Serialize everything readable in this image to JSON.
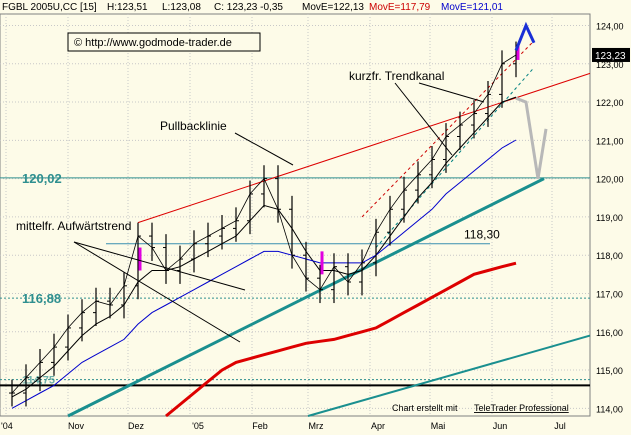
{
  "chart_data": {
    "type": "line",
    "header": {
      "symbol": "FGBL 2005U,CC [15]",
      "high": "H:123,51",
      "low": "L:123,08",
      "close": "C: 123,23 -0,35",
      "ma_black_label": "MovE=122,13",
      "ma_red_label": "MovE=117,79",
      "ma_blue_label": "MovE=121,01"
    },
    "watermark": "© http://www.godmode-trader.de",
    "footer": {
      "prefix": "Chart erstellt mit ",
      "brand": "TeleTrader Professional"
    },
    "last_price_label": "123,23",
    "ylim": [
      113.8,
      124.3
    ],
    "y_ticks": [
      "114,00",
      "115,00",
      "116,00",
      "117,00",
      "118,00",
      "119,00",
      "120,00",
      "121,00",
      "122,00",
      "123,00",
      "124,00"
    ],
    "x_ticks": [
      "'04",
      "Nov",
      "Dez",
      "'05",
      "Feb",
      "Mrz",
      "Apr",
      "Mai",
      "Jun",
      "Jul"
    ],
    "levels": [
      {
        "label": "120,02",
        "value": 120.02,
        "color": "#2f8f8f",
        "style": "solid"
      },
      {
        "label": "116,88",
        "value": 116.88,
        "color": "#2f8f8f",
        "style": "dotted"
      },
      {
        "label": "118,30",
        "value": 118.3,
        "color": "#2f8f8f",
        "style": "solid"
      },
      {
        "label": "114,75",
        "value": 114.75,
        "color": "#2f8f8f",
        "style": "dotted"
      },
      {
        "label": "",
        "value": 114.6,
        "color": "#000000",
        "style": "solid"
      }
    ],
    "annotations": [
      "Pullbacklinie",
      "kurzfr. Trendkanal",
      "mittelfr. Aufwärtstrend"
    ],
    "price_series": {
      "name": "FGBL close",
      "x": [
        "2004-10-04",
        "2004-10-11",
        "2004-10-18",
        "2004-10-25",
        "2004-11-01",
        "2004-11-08",
        "2004-11-15",
        "2004-11-22",
        "2004-11-29",
        "2004-12-06",
        "2004-12-13",
        "2004-12-20",
        "2004-12-27",
        "2005-01-03",
        "2005-01-10",
        "2005-01-17",
        "2005-01-24",
        "2005-01-31",
        "2005-02-07",
        "2005-02-14",
        "2005-02-21",
        "2005-02-28",
        "2005-03-07",
        "2005-03-14",
        "2005-03-21",
        "2005-03-28",
        "2005-04-04",
        "2005-04-11",
        "2005-04-18",
        "2005-04-25",
        "2005-05-02",
        "2005-05-09",
        "2005-05-16",
        "2005-05-23",
        "2005-05-30",
        "2005-06-06",
        "2005-06-13"
      ],
      "values": [
        114.4,
        114.8,
        115.2,
        115.6,
        116.1,
        116.5,
        116.8,
        116.7,
        117.2,
        118.5,
        118.2,
        117.6,
        117.9,
        118.3,
        118.5,
        118.7,
        118.9,
        119.6,
        120.0,
        119.2,
        118.0,
        117.4,
        117.1,
        117.7,
        117.3,
        117.8,
        118.6,
        119.2,
        119.7,
        120.1,
        120.5,
        121.1,
        121.4,
        121.7,
        122.2,
        123.0,
        123.23
      ]
    },
    "moving_averages": [
      {
        "name": "MovE=122,13",
        "color": "#000000",
        "width": 1,
        "values": [
          114.3,
          114.5,
          114.8,
          115.1,
          115.5,
          115.9,
          116.2,
          116.4,
          116.7,
          117.3,
          117.6,
          117.6,
          117.7,
          117.9,
          118.1,
          118.3,
          118.5,
          118.9,
          119.3,
          119.2,
          118.7,
          118.1,
          117.6,
          117.6,
          117.5,
          117.6,
          118.0,
          118.5,
          119.0,
          119.5,
          119.9,
          120.4,
          120.8,
          121.2,
          121.6,
          122.0,
          122.13
        ]
      },
      {
        "name": "MovE=121,01",
        "color": "#0000cc",
        "width": 1,
        "values": [
          114.0,
          114.2,
          114.4,
          114.6,
          114.9,
          115.2,
          115.4,
          115.6,
          115.8,
          116.2,
          116.5,
          116.7,
          116.9,
          117.1,
          117.3,
          117.5,
          117.7,
          117.9,
          118.1,
          118.1,
          118.0,
          117.9,
          117.8,
          117.8,
          117.8,
          117.8,
          118.0,
          118.3,
          118.6,
          118.9,
          119.2,
          119.6,
          119.9,
          120.2,
          120.5,
          120.8,
          121.01
        ]
      },
      {
        "name": "MovE=117,79",
        "color": "#dd0000",
        "width": 3,
        "values": [
          null,
          null,
          null,
          null,
          null,
          null,
          null,
          null,
          null,
          null,
          null,
          113.8,
          114.1,
          114.4,
          114.7,
          115.0,
          115.2,
          115.3,
          115.4,
          115.5,
          115.6,
          115.7,
          115.75,
          115.8,
          115.9,
          116.0,
          116.1,
          116.3,
          116.5,
          116.7,
          116.9,
          117.1,
          117.3,
          117.5,
          117.6,
          117.7,
          117.79
        ]
      }
    ],
    "trendlines": [
      {
        "name": "Pullbacklinie",
        "color": "#dd0000",
        "width": 1,
        "from": [
          "2004-12-06",
          118.85
        ],
        "to": [
          "2005-07-20",
          122.75
        ]
      },
      {
        "name": "mittelfr. Aufwärtstrend",
        "color": "#1a8f8f",
        "width": 3,
        "from": [
          "2004-11-01",
          113.8
        ],
        "to": [
          "2005-06-27",
          120.0
        ]
      },
      {
        "name": "",
        "color": "#1a8f8f",
        "width": 2,
        "from": [
          "2005-03-01",
          113.8
        ],
        "to": [
          "2005-07-20",
          115.9
        ]
      },
      {
        "name": "kurzfr. Trendkanal",
        "color": "#cc0000",
        "width": 1,
        "dash": "3,3",
        "from": [
          "2005-03-28",
          119.0
        ],
        "to": [
          "2005-06-22",
          123.6
        ]
      },
      {
        "name": "kurzfr. Trendkanal",
        "color": "#008080",
        "width": 1,
        "dash": "3,3",
        "from": [
          "2005-04-04",
          118.2
        ],
        "to": [
          "2005-06-22",
          122.9
        ]
      }
    ],
    "projection": {
      "color": "#b8b8b8",
      "x": [
        "2005-06-13",
        "2005-06-18",
        "2005-06-24",
        "2005-06-28"
      ],
      "values": [
        122.1,
        122.0,
        120.0,
        121.3
      ]
    },
    "blue_arrow": {
      "color": "#1a2fd6",
      "x": [
        "2005-06-13",
        "2005-06-18",
        "2005-06-22"
      ],
      "values": [
        123.35,
        124.0,
        123.55
      ]
    },
    "grid": true,
    "legend": "none"
  }
}
